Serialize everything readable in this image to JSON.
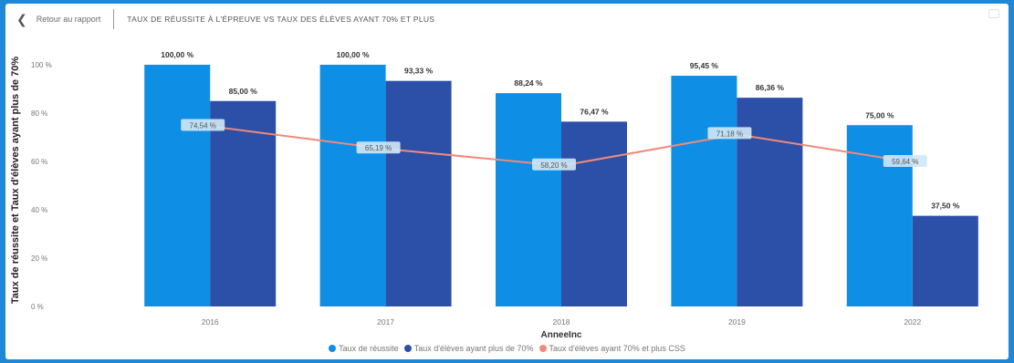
{
  "header": {
    "back_label": "Retour au rapport",
    "back_icon": "chevron-left-icon",
    "title": "TAUX DE RÉUSSITE À L'ÉPREUVE VS TAUX DES ÉLÈVES AYANT 70% ET PLUS"
  },
  "colors": {
    "series1": "#0e8ee4",
    "series2": "#2c4fa8",
    "line": "#ef8a7b",
    "frame": "#1e88d6"
  },
  "chart_data": {
    "type": "bar",
    "categories": [
      "2016",
      "2017",
      "2018",
      "2019",
      "2022"
    ],
    "xlabel": "AnneeInc",
    "ylabel": "Taux de réussite et Taux d'élèves ayant plus de 70%",
    "ylim": [
      0,
      100
    ],
    "yticks": [
      "0 %",
      "20 %",
      "40 %",
      "60 %",
      "80 %",
      "100 %"
    ],
    "series": [
      {
        "name": "Taux de réussite",
        "type": "bar",
        "values": [
          100.0,
          100.0,
          88.24,
          95.45,
          75.0
        ],
        "labels": [
          "100,00 %",
          "100,00 %",
          "88,24 %",
          "95,45 %",
          "75,00 %"
        ]
      },
      {
        "name": "Taux d'élèves ayant plus de 70%",
        "type": "bar",
        "values": [
          85.0,
          93.33,
          76.47,
          86.36,
          37.5
        ],
        "labels": [
          "85,00 %",
          "93,33 %",
          "76,47 %",
          "86,36 %",
          "37,50 %"
        ]
      },
      {
        "name": "Taux d'élèves ayant 70% et plus CSS",
        "type": "line",
        "values": [
          74.54,
          65.19,
          58.2,
          71.18,
          59.64
        ],
        "labels": [
          "74,54 %",
          "65,19 %",
          "58,20 %",
          "71,18 %",
          "59,64 %"
        ]
      }
    ],
    "grid": false,
    "legend_position": "bottom-center"
  }
}
